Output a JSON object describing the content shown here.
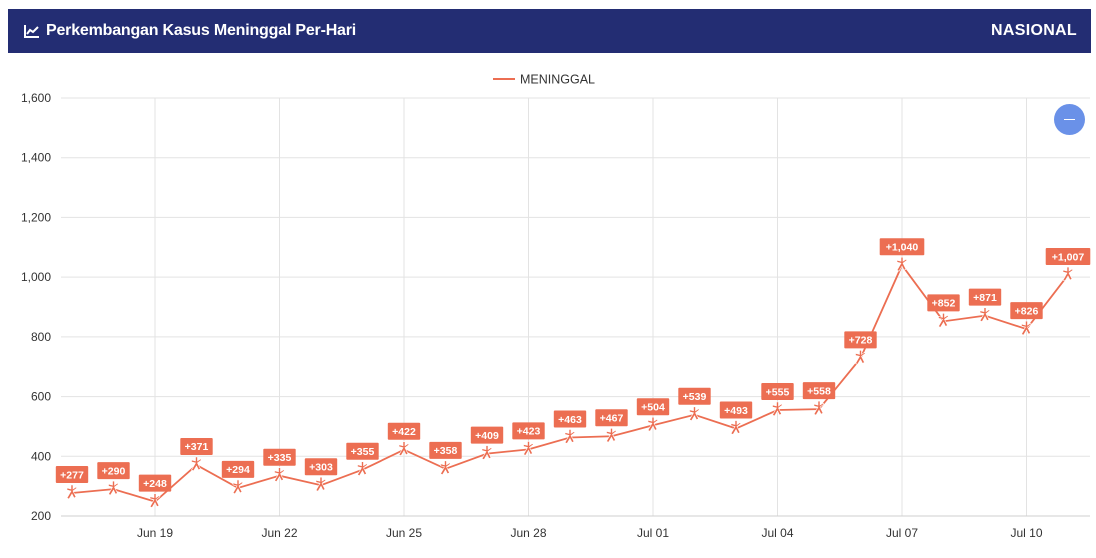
{
  "header": {
    "title": "Perkembangan Kasus Meninggal Per-Hari",
    "region": "NASIONAL",
    "icon": "line-chart-icon"
  },
  "zoom_button": {
    "icon": "minus-icon"
  },
  "colors": {
    "header_bg": "#232d73",
    "series": "#ec6e52",
    "zoom_button": "#6a91e8"
  },
  "chart_data": {
    "type": "line",
    "title": "",
    "xlabel": "",
    "ylabel": "",
    "ylim": [
      200,
      1600
    ],
    "yticks": [
      200,
      400,
      600,
      800,
      1000,
      1200,
      1400,
      1600
    ],
    "ytick_labels": [
      "200",
      "400",
      "600",
      "800",
      "1,000",
      "1,200",
      "1,400",
      "1,600"
    ],
    "x_tick_labels": [
      "Jun 19",
      "Jun 22",
      "Jun 25",
      "Jun 28",
      "Jul 01",
      "Jul 04",
      "Jul 07",
      "Jul 10"
    ],
    "x_tick_dates": [
      "Jun 19",
      "Jun 22",
      "Jun 25",
      "Jun 28",
      "Jul 01",
      "Jul 04",
      "Jul 07",
      "Jul 10"
    ],
    "legend": {
      "position": "top-center",
      "entries": [
        "MENINGGAL"
      ]
    },
    "grid": true,
    "series": [
      {
        "name": "MENINGGAL",
        "dates": [
          "Jun 17",
          "Jun 18",
          "Jun 19",
          "Jun 20",
          "Jun 21",
          "Jun 22",
          "Jun 23",
          "Jun 24",
          "Jun 25",
          "Jun 26",
          "Jun 27",
          "Jun 28",
          "Jun 29",
          "Jun 30",
          "Jul 01",
          "Jul 02",
          "Jul 03",
          "Jul 04",
          "Jul 05",
          "Jul 06",
          "Jul 07",
          "Jul 08",
          "Jul 09",
          "Jul 10",
          "Jul 11"
        ],
        "values": [
          277,
          290,
          248,
          371,
          294,
          335,
          303,
          355,
          422,
          358,
          409,
          423,
          463,
          467,
          504,
          539,
          493,
          555,
          558,
          728,
          1040,
          852,
          871,
          826,
          1007
        ],
        "labels": [
          "+277",
          "+290",
          "+248",
          "+371",
          "+294",
          "+335",
          "+303",
          "+355",
          "+422",
          "+358",
          "+409",
          "+423",
          "+463",
          "+467",
          "+504",
          "+539",
          "+493",
          "+555",
          "+558",
          "+728",
          "+1,040",
          "+852",
          "+871",
          "+826",
          "+1,007"
        ]
      }
    ]
  }
}
